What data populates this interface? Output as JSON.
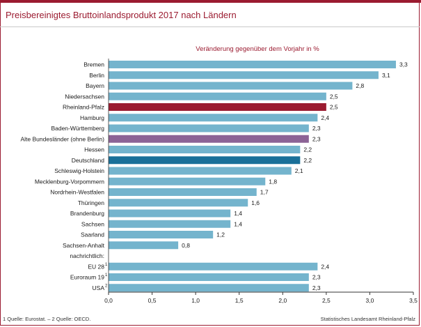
{
  "header": {
    "title": "Preisbereinigtes Bruttoinlandsprodukt  2017 nach Ländern"
  },
  "footer": {
    "sources": "1 Quelle: Eurostat. – 2 Quelle: OECD.",
    "publisher": "Statistisches Landesamt Rheinland-Pfalz"
  },
  "chart_data": {
    "type": "bar",
    "orientation": "horizontal",
    "title": "",
    "subtitle": "Veränderung gegenüber dem Vorjahr in %",
    "xlim": [
      0,
      3.5
    ],
    "xticks": [
      "0,0",
      "0,5",
      "1,0",
      "1,5",
      "2,0",
      "2,5",
      "3,0",
      "3,5"
    ],
    "grid": false,
    "colors": {
      "default": "#74b4cd",
      "rheinland_pfalz": "#9b1b30",
      "alte_bundeslaender": "#8c6396",
      "deutschland": "#1a7099"
    },
    "categories": [
      {
        "label": "Bremen",
        "sup": "",
        "value": 3.3,
        "value_label": "3,3",
        "color": "default"
      },
      {
        "label": "Berlin",
        "sup": "",
        "value": 3.1,
        "value_label": "3,1",
        "color": "default"
      },
      {
        "label": "Bayern",
        "sup": "",
        "value": 2.8,
        "value_label": "2,8",
        "color": "default"
      },
      {
        "label": "Niedersachsen",
        "sup": "",
        "value": 2.5,
        "value_label": "2,5",
        "color": "default"
      },
      {
        "label": "Rheinland-Pfalz",
        "sup": "",
        "value": 2.5,
        "value_label": "2,5",
        "color": "rheinland_pfalz"
      },
      {
        "label": "Hamburg",
        "sup": "",
        "value": 2.4,
        "value_label": "2,4",
        "color": "default"
      },
      {
        "label": "Baden-Württemberg",
        "sup": "",
        "value": 2.3,
        "value_label": "2,3",
        "color": "default"
      },
      {
        "label": "Alte Bundesländer (ohne Berlin)",
        "sup": "",
        "value": 2.3,
        "value_label": "2,3",
        "color": "alte_bundeslaender"
      },
      {
        "label": "Hessen",
        "sup": "",
        "value": 2.2,
        "value_label": "2,2",
        "color": "default"
      },
      {
        "label": "Deutschland",
        "sup": "",
        "value": 2.2,
        "value_label": "2,2",
        "color": "deutschland"
      },
      {
        "label": "Schleswig-Holstein",
        "sup": "",
        "value": 2.1,
        "value_label": "2,1",
        "color": "default"
      },
      {
        "label": "Mecklenburg-Vorpommern",
        "sup": "",
        "value": 1.8,
        "value_label": "1,8",
        "color": "default"
      },
      {
        "label": "Nordrhein-Westfalen",
        "sup": "",
        "value": 1.7,
        "value_label": "1,7",
        "color": "default"
      },
      {
        "label": "Thüringen",
        "sup": "",
        "value": 1.6,
        "value_label": "1,6",
        "color": "default"
      },
      {
        "label": "Brandenburg",
        "sup": "",
        "value": 1.4,
        "value_label": "1,4",
        "color": "default"
      },
      {
        "label": "Sachsen",
        "sup": "",
        "value": 1.4,
        "value_label": "1,4",
        "color": "default"
      },
      {
        "label": "Saarland",
        "sup": "",
        "value": 1.2,
        "value_label": "1,2",
        "color": "default"
      },
      {
        "label": "Sachsen-Anhalt",
        "sup": "",
        "value": 0.8,
        "value_label": "0,8",
        "color": "default"
      },
      {
        "label": "nachrichtlich:",
        "sup": "",
        "value": null,
        "value_label": "",
        "color": "default"
      },
      {
        "label": "EU 28",
        "sup": "1",
        "value": 2.4,
        "value_label": "2,4",
        "color": "default"
      },
      {
        "label": "Euroraum 19",
        "sup": "1",
        "value": 2.3,
        "value_label": "2,3",
        "color": "default"
      },
      {
        "label": "USA",
        "sup": "2",
        "value": 2.3,
        "value_label": "2,3",
        "color": "default"
      }
    ]
  }
}
